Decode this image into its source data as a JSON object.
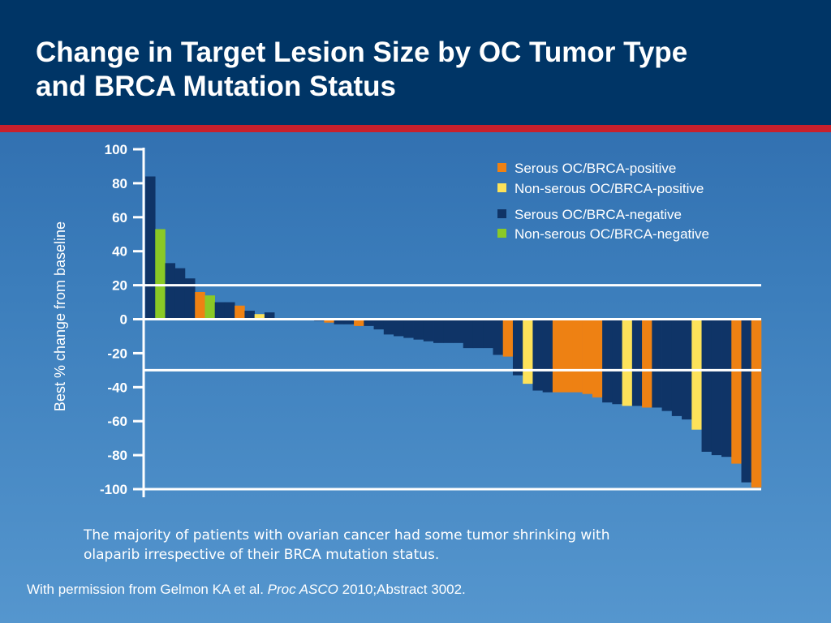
{
  "header": {
    "title_line1": "Change in Target Lesion Size by OC Tumor Type",
    "title_line2": "and BRCA Mutation Status"
  },
  "colors": {
    "header_bg": "#003566",
    "accent_stripe": "#c8202c",
    "serous_positive": "#ee8113",
    "nonserous_positive": "#fde25a",
    "serous_negative": "#0f3467",
    "nonserous_negative": "#8ac926"
  },
  "chart_data": {
    "type": "bar",
    "ylabel": "Best % change from baseline",
    "ylim": [
      -100,
      100
    ],
    "yticks": [
      100,
      80,
      60,
      40,
      20,
      0,
      -20,
      -40,
      -60,
      -80,
      -100
    ],
    "ytick_labels": [
      "100",
      "80",
      "60",
      "40",
      "20",
      "0",
      "-20",
      "-40",
      "-60",
      "-80",
      "-100"
    ],
    "reference_lines": [
      20,
      0,
      -30,
      -100
    ],
    "legend_position": "top-right",
    "legend": [
      {
        "key": "SP",
        "label": "Serous OC/BRCA-positive"
      },
      {
        "key": "NP",
        "label": "Non-serous OC/BRCA-positive"
      },
      {
        "key": "SN",
        "label": "Serous OC/BRCA-negative"
      },
      {
        "key": "NN",
        "label": "Non-serous OC/BRCA-negative"
      }
    ],
    "values": [
      84,
      53,
      33,
      30,
      24,
      16,
      14,
      10,
      10,
      8,
      5,
      3,
      4,
      0,
      0,
      0,
      0,
      -1,
      -2,
      -3,
      -3,
      -4,
      -4,
      -6,
      -9,
      -10,
      -11,
      -12,
      -13,
      -14,
      -14,
      -14,
      -17,
      -17,
      -17,
      -21,
      -22,
      -33,
      -38,
      -42,
      -43,
      -43,
      -43,
      -43,
      -44,
      -46,
      -49,
      -50,
      -51,
      -51,
      -52,
      -52,
      -54,
      -57,
      -59,
      -65,
      -78,
      -80,
      -81,
      -85,
      -96,
      -99
    ],
    "categories": [
      "SN",
      "NN",
      "SN",
      "SN",
      "SN",
      "SP",
      "NN",
      "SN",
      "SN",
      "SP",
      "SN",
      "NP",
      "SN",
      "SN",
      "SN",
      "SN",
      "SN",
      "SN",
      "SP",
      "SN",
      "SN",
      "SP",
      "SN",
      "SN",
      "SN",
      "SN",
      "SN",
      "SN",
      "SN",
      "SN",
      "SN",
      "SN",
      "SN",
      "SN",
      "SN",
      "SN",
      "SP",
      "SN",
      "NP",
      "SN",
      "SN",
      "SP",
      "SP",
      "SP",
      "SP",
      "SP",
      "SN",
      "SN",
      "NP",
      "SN",
      "SP",
      "SN",
      "SN",
      "SN",
      "SN",
      "NP",
      "SN",
      "SN",
      "SN",
      "SP",
      "SN",
      "SP"
    ]
  },
  "caption": {
    "line1": "The majority of patients with ovarian cancer had some tumor shrinking with",
    "line2": "olaparib irrespective of their BRCA mutation status."
  },
  "citation": {
    "prefix": "With permission from Gelmon KA et al. ",
    "journal": "Proc ASCO",
    "suffix": " 2010;Abstract 3002."
  }
}
